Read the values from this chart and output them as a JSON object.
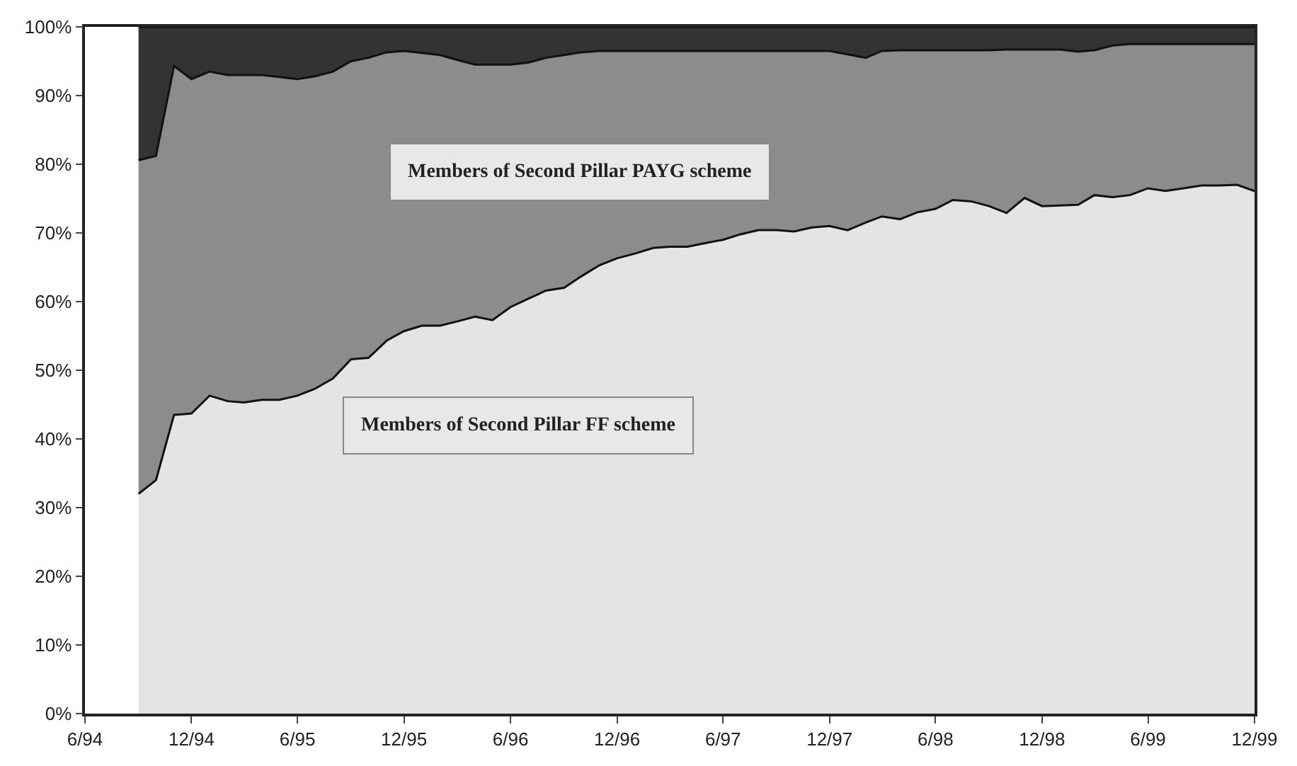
{
  "chart_data": {
    "type": "area",
    "stacked": true,
    "legend": false,
    "x": [
      "1994-09",
      "1994-10",
      "1994-11",
      "1994-12",
      "1995-01",
      "1995-02",
      "1995-03",
      "1995-04",
      "1995-05",
      "1995-06",
      "1995-07",
      "1995-08",
      "1995-09",
      "1995-10",
      "1995-11",
      "1995-12",
      "1996-01",
      "1996-02",
      "1996-03",
      "1996-04",
      "1996-05",
      "1996-06",
      "1996-07",
      "1996-08",
      "1996-09",
      "1996-10",
      "1996-11",
      "1996-12",
      "1997-01",
      "1997-02",
      "1997-03",
      "1997-04",
      "1997-05",
      "1997-06",
      "1997-07",
      "1997-08",
      "1997-09",
      "1997-10",
      "1997-11",
      "1997-12",
      "1998-01",
      "1998-02",
      "1998-03",
      "1998-04",
      "1998-05",
      "1998-06",
      "1998-07",
      "1998-08",
      "1998-09",
      "1998-10",
      "1998-11",
      "1998-12",
      "1999-01",
      "1999-02",
      "1999-03",
      "1999-04",
      "1999-05",
      "1999-06",
      "1999-07",
      "1999-08",
      "1999-09",
      "1999-10",
      "1999-11",
      "1999-12"
    ],
    "series": [
      {
        "name": "Members of Second Pillar FF scheme",
        "color": "#e4e4e4",
        "values": [
          32,
          34,
          43.5,
          43.7,
          46.3,
          45.5,
          45.3,
          45.7,
          45.7,
          46.3,
          47.3,
          48.8,
          51.6,
          51.8,
          54.3,
          55.7,
          56.5,
          56.5,
          57.1,
          57.8,
          57.3,
          59.2,
          60.4,
          61.6,
          62,
          63.7,
          65.3,
          66.3,
          67,
          67.8,
          68,
          68,
          68.5,
          69,
          69.8,
          70.4,
          70.4,
          70.2,
          70.8,
          71,
          70.4,
          71.5,
          72.4,
          72,
          73,
          73.5,
          74.8,
          74.6,
          73.9,
          72.9,
          75.1,
          73.9,
          74,
          74.1,
          75.5,
          75.2,
          75.5,
          76.5,
          76.1,
          76.5,
          76.9,
          76.9,
          77,
          76.1
        ]
      },
      {
        "name": "Members of Second Pillar PAYG scheme",
        "color": "#8c8c8c",
        "values": [
          48.6,
          47.2,
          50.8,
          48.7,
          47.2,
          47.5,
          47.7,
          47.3,
          47,
          46.1,
          45.5,
          44.7,
          43.4,
          43.7,
          42,
          40.8,
          39.7,
          39.4,
          38.1,
          36.7,
          37.2,
          35.3,
          34.4,
          33.9,
          33.9,
          32.6,
          31.2,
          30.2,
          29.5,
          28.7,
          28.5,
          28.5,
          28,
          27.5,
          26.7,
          26.1,
          26.1,
          26.3,
          25.7,
          25.5,
          25.6,
          24,
          24.1,
          24.6,
          23.6,
          23.1,
          21.8,
          22,
          22.7,
          23.8,
          21.6,
          22.8,
          22.7,
          22.3,
          21.1,
          22.1,
          22,
          21,
          21.4,
          21,
          20.6,
          20.6,
          20.5,
          21.4
        ]
      },
      {
        "color": "#333333",
        "values": [
          19.4,
          18.8,
          5.7,
          7.6,
          6.5,
          7,
          7,
          7,
          7.3,
          7.6,
          7.2,
          6.5,
          5,
          4.5,
          3.7,
          3.5,
          3.8,
          4.1,
          4.8,
          5.5,
          5.5,
          5.5,
          5.2,
          4.5,
          4.1,
          3.7,
          3.5,
          3.5,
          3.5,
          3.5,
          3.5,
          3.5,
          3.5,
          3.5,
          3.5,
          3.5,
          3.5,
          3.5,
          3.5,
          3.5,
          4,
          4.5,
          3.5,
          3.4,
          3.4,
          3.4,
          3.4,
          3.4,
          3.4,
          3.3,
          3.3,
          3.3,
          3.3,
          3.6,
          3.4,
          2.7,
          2.5,
          2.5,
          2.5,
          2.5,
          2.5,
          2.5,
          2.5,
          2.5
        ]
      }
    ],
    "xlim": [
      "1994-06",
      "1999-12"
    ],
    "xticks": [
      {
        "value": "1994-06",
        "label": "6/94"
      },
      {
        "value": "1994-12",
        "label": "12/94"
      },
      {
        "value": "1995-06",
        "label": "6/95"
      },
      {
        "value": "1995-12",
        "label": "12/95"
      },
      {
        "value": "1996-06",
        "label": "6/96"
      },
      {
        "value": "1996-12",
        "label": "12/96"
      },
      {
        "value": "1997-06",
        "label": "6/97"
      },
      {
        "value": "1997-12",
        "label": "12/97"
      },
      {
        "value": "1998-06",
        "label": "6/98"
      },
      {
        "value": "1998-12",
        "label": "12/98"
      },
      {
        "value": "1999-06",
        "label": "6/99"
      },
      {
        "value": "1999-12",
        "label": "12/99"
      }
    ],
    "ylim": [
      0,
      100
    ],
    "yticks": [
      {
        "value": 0,
        "label": "0%"
      },
      {
        "value": 10,
        "label": "10%"
      },
      {
        "value": 20,
        "label": "20%"
      },
      {
        "value": 30,
        "label": "30%"
      },
      {
        "value": 40,
        "label": "40%"
      },
      {
        "value": 50,
        "label": "50%"
      },
      {
        "value": 60,
        "label": "60%"
      },
      {
        "value": 70,
        "label": "70%"
      },
      {
        "value": 80,
        "label": "80%"
      },
      {
        "value": 90,
        "label": "90%"
      },
      {
        "value": 100,
        "label": "100%"
      }
    ]
  }
}
